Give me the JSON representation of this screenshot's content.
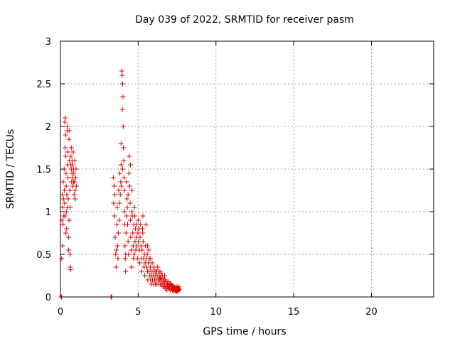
{
  "chart_data": {
    "type": "scatter",
    "title": "Day 039 of 2022, SRMTID for receiver pasm",
    "xlabel": "GPS time / hours",
    "ylabel": "SRMTID / TECUs",
    "xlim": [
      0,
      24
    ],
    "ylim": [
      0,
      3
    ],
    "xticks": [
      0,
      5,
      10,
      15,
      20
    ],
    "xtick_labels": [
      "0",
      "5",
      "10",
      "15",
      "20"
    ],
    "yticks": [
      0,
      0.5,
      1,
      1.5,
      2,
      2.5,
      3
    ],
    "ytick_labels": [
      "0",
      "0.5",
      "1",
      "1.5",
      "2",
      "2.5",
      "3"
    ],
    "grid": true,
    "marker": "plus",
    "color": "#e00000",
    "series": [
      {
        "values": [
          [
            0.05,
            0.0
          ],
          [
            0.08,
            0.0
          ],
          [
            0.08,
            0.45
          ],
          [
            0.1,
            0.9
          ],
          [
            0.12,
            1.2
          ],
          [
            0.14,
            0.6
          ],
          [
            0.15,
            1.05
          ],
          [
            0.17,
            0.85
          ],
          [
            0.18,
            1.35
          ],
          [
            0.2,
            1.15
          ],
          [
            0.22,
            0.95
          ],
          [
            0.24,
            1.5
          ],
          [
            0.25,
            1.25
          ],
          [
            0.27,
            1.1
          ],
          [
            0.28,
            2.05
          ],
          [
            0.3,
            1.75
          ],
          [
            0.31,
            2.1
          ],
          [
            0.33,
            1.9
          ],
          [
            0.34,
            1.65
          ],
          [
            0.36,
            1.45
          ],
          [
            0.37,
            1.3
          ],
          [
            0.38,
            1.0
          ],
          [
            0.4,
            0.8
          ],
          [
            0.41,
            1.2
          ],
          [
            0.43,
            1.95
          ],
          [
            0.44,
            2.0
          ],
          [
            0.46,
            1.7
          ],
          [
            0.47,
            1.55
          ],
          [
            0.48,
            1.4
          ],
          [
            0.5,
            1.15
          ],
          [
            0.52,
            0.7
          ],
          [
            0.53,
            0.55
          ],
          [
            0.55,
            1.85
          ],
          [
            0.56,
            1.95
          ],
          [
            0.58,
            1.6
          ],
          [
            0.6,
            1.25
          ],
          [
            0.62,
            0.5
          ],
          [
            0.64,
            0.35
          ],
          [
            0.65,
            0.32
          ],
          [
            0.67,
            1.55
          ],
          [
            0.68,
            1.65
          ],
          [
            0.7,
            1.5
          ],
          [
            0.72,
            1.35
          ],
          [
            0.74,
            1.45
          ],
          [
            0.75,
            1.6
          ],
          [
            0.77,
            1.55
          ],
          [
            0.78,
            1.4
          ],
          [
            0.8,
            1.3
          ],
          [
            0.82,
            1.7
          ],
          [
            0.84,
            1.5
          ],
          [
            0.86,
            1.45
          ],
          [
            0.88,
            1.2
          ],
          [
            0.9,
            1.35
          ],
          [
            0.92,
            1.6
          ],
          [
            0.95,
            1.25
          ],
          [
            0.98,
            1.4
          ],
          [
            1.0,
            1.5
          ],
          [
            1.02,
            1.3
          ],
          [
            0.3,
            0.95
          ],
          [
            0.35,
            0.75
          ],
          [
            0.45,
            1.05
          ],
          [
            0.55,
            0.9
          ],
          [
            0.62,
            1.05
          ],
          [
            0.7,
            1.75
          ],
          [
            0.85,
            1.35
          ],
          [
            0.95,
            1.15
          ]
        ]
      },
      {
        "values": [
          [
            3.25,
            0.0
          ],
          [
            3.3,
            0.0
          ],
          [
            3.4,
            1.4
          ],
          [
            3.42,
            1.1
          ],
          [
            3.45,
            1.3
          ],
          [
            3.48,
            0.95
          ],
          [
            3.5,
            1.2
          ],
          [
            3.52,
            0.7
          ],
          [
            3.55,
            0.5
          ],
          [
            3.58,
            0.35
          ],
          [
            3.6,
            0.55
          ],
          [
            3.63,
            0.85
          ],
          [
            3.65,
            1.05
          ],
          [
            3.68,
            0.6
          ],
          [
            3.7,
            0.45
          ],
          [
            3.72,
            0.75
          ],
          [
            3.75,
            1.25
          ],
          [
            3.78,
            0.9
          ],
          [
            3.8,
            1.1
          ],
          [
            3.82,
            1.45
          ],
          [
            3.85,
            1.2
          ],
          [
            3.88,
            1.35
          ],
          [
            3.9,
            1.55
          ],
          [
            3.92,
            1.3
          ],
          [
            3.95,
            2.65
          ],
          [
            3.97,
            2.6
          ],
          [
            3.98,
            2.2
          ],
          [
            4.0,
            2.5
          ],
          [
            4.02,
            2.35
          ],
          [
            4.04,
            2.0
          ],
          [
            4.05,
            1.75
          ],
          [
            4.07,
            1.6
          ],
          [
            4.09,
            1.4
          ],
          [
            4.1,
            1.25
          ],
          [
            4.12,
            1.0
          ],
          [
            4.14,
            0.85
          ],
          [
            4.15,
            0.6
          ],
          [
            4.17,
            0.45
          ],
          [
            4.19,
            0.3
          ],
          [
            4.2,
            0.5
          ],
          [
            4.22,
            0.75
          ],
          [
            4.25,
            0.95
          ],
          [
            4.28,
            1.15
          ],
          [
            4.3,
            1.05
          ],
          [
            4.32,
            0.85
          ],
          [
            4.35,
            0.65
          ],
          [
            4.38,
            0.5
          ],
          [
            4.4,
            1.45
          ],
          [
            4.42,
            1.65
          ],
          [
            4.45,
            1.3
          ],
          [
            4.48,
            1.1
          ],
          [
            4.5,
            0.9
          ],
          [
            4.52,
            0.7
          ],
          [
            4.55,
            0.55
          ],
          [
            4.58,
            0.35
          ],
          [
            4.6,
            1.25
          ],
          [
            4.62,
            0.95
          ],
          [
            4.65,
            0.75
          ],
          [
            4.68,
            0.6
          ],
          [
            4.7,
            0.45
          ],
          [
            4.72,
            0.85
          ],
          [
            4.75,
            1.05
          ],
          [
            4.78,
            0.95
          ],
          [
            4.8,
            0.65
          ],
          [
            4.82,
            0.8
          ],
          [
            4.85,
            0.55
          ],
          [
            4.88,
            0.7
          ],
          [
            4.9,
            0.85
          ],
          [
            4.92,
            0.6
          ],
          [
            4.95,
            0.45
          ],
          [
            4.98,
            0.75
          ],
          [
            5.0,
            0.9
          ],
          [
            5.02,
            0.65
          ],
          [
            5.05,
            0.8
          ],
          [
            5.08,
            0.55
          ],
          [
            5.1,
            0.4
          ],
          [
            5.12,
            0.7
          ],
          [
            5.15,
            0.85
          ],
          [
            5.18,
            0.6
          ],
          [
            5.2,
            0.45
          ],
          [
            5.22,
            0.3
          ],
          [
            5.25,
            0.55
          ],
          [
            5.28,
            0.8
          ],
          [
            5.3,
            0.95
          ],
          [
            5.32,
            0.65
          ],
          [
            5.35,
            0.45
          ],
          [
            5.38,
            0.35
          ],
          [
            5.4,
            0.5
          ],
          [
            5.42,
            0.25
          ],
          [
            5.45,
            0.4
          ],
          [
            5.48,
            0.6
          ],
          [
            5.5,
            0.85
          ],
          [
            5.52,
            0.45
          ],
          [
            5.55,
            0.35
          ],
          [
            5.58,
            0.5
          ],
          [
            5.6,
            0.3
          ],
          [
            5.62,
            0.2
          ],
          [
            5.65,
            0.4
          ],
          [
            5.68,
            0.55
          ],
          [
            5.7,
            0.3
          ],
          [
            5.72,
            0.45
          ],
          [
            5.75,
            0.25
          ],
          [
            5.78,
            0.35
          ],
          [
            5.8,
            0.2
          ],
          [
            5.82,
            0.3
          ],
          [
            5.85,
            0.15
          ],
          [
            5.88,
            0.25
          ],
          [
            5.9,
            0.4
          ],
          [
            5.92,
            0.2
          ],
          [
            5.95,
            0.3
          ],
          [
            5.98,
            0.15
          ],
          [
            6.0,
            0.25
          ],
          [
            6.02,
            0.35
          ],
          [
            6.05,
            0.2
          ],
          [
            6.08,
            0.3
          ],
          [
            6.1,
            0.15
          ],
          [
            6.12,
            0.25
          ],
          [
            6.15,
            0.2
          ],
          [
            6.18,
            0.3
          ],
          [
            6.2,
            0.15
          ],
          [
            6.22,
            0.25
          ],
          [
            6.25,
            0.35
          ],
          [
            6.28,
            0.2
          ],
          [
            6.3,
            0.3
          ],
          [
            6.32,
            0.15
          ],
          [
            6.35,
            0.25
          ],
          [
            6.38,
            0.2
          ],
          [
            6.4,
            0.3
          ],
          [
            6.42,
            0.15
          ],
          [
            6.45,
            0.22
          ],
          [
            6.48,
            0.28
          ],
          [
            6.5,
            0.15
          ],
          [
            6.52,
            0.2
          ],
          [
            6.55,
            0.25
          ],
          [
            6.58,
            0.15
          ],
          [
            6.6,
            0.12
          ],
          [
            6.62,
            0.18
          ],
          [
            6.65,
            0.22
          ],
          [
            6.68,
            0.12
          ],
          [
            6.7,
            0.15
          ],
          [
            6.72,
            0.2
          ],
          [
            6.75,
            0.1
          ],
          [
            6.78,
            0.15
          ],
          [
            6.8,
            0.18
          ],
          [
            6.82,
            0.12
          ],
          [
            6.85,
            0.08
          ],
          [
            6.88,
            0.15
          ],
          [
            6.9,
            0.12
          ],
          [
            6.92,
            0.18
          ],
          [
            6.95,
            0.1
          ],
          [
            6.98,
            0.14
          ],
          [
            7.0,
            0.12
          ],
          [
            7.02,
            0.1
          ],
          [
            7.05,
            0.16
          ],
          [
            7.08,
            0.08
          ],
          [
            7.1,
            0.12
          ],
          [
            7.12,
            0.15
          ],
          [
            7.15,
            0.1
          ],
          [
            7.18,
            0.13
          ],
          [
            7.2,
            0.08
          ],
          [
            7.22,
            0.12
          ],
          [
            7.25,
            0.1
          ],
          [
            7.28,
            0.07
          ],
          [
            7.3,
            0.12
          ],
          [
            7.32,
            0.09
          ],
          [
            7.35,
            0.11
          ],
          [
            7.38,
            0.07
          ],
          [
            7.4,
            0.1
          ],
          [
            7.42,
            0.08
          ],
          [
            7.45,
            0.12
          ],
          [
            7.48,
            0.06
          ],
          [
            7.5,
            0.09
          ],
          [
            7.52,
            0.11
          ],
          [
            7.55,
            0.07
          ],
          [
            7.58,
            0.1
          ],
          [
            7.6,
            0.08
          ],
          [
            7.62,
            0.12
          ],
          [
            7.65,
            0.09
          ],
          [
            3.9,
            1.8
          ],
          [
            4.0,
            1.5
          ],
          [
            4.25,
            1.35
          ],
          [
            4.35,
            1.2
          ],
          [
            4.5,
            1.55
          ],
          [
            4.6,
            1.0
          ],
          [
            4.75,
            0.5
          ],
          [
            5.3,
            0.75
          ],
          [
            5.6,
            0.6
          ],
          [
            5.8,
            0.45
          ],
          [
            6.15,
            0.3
          ],
          [
            6.4,
            0.22
          ],
          [
            6.7,
            0.25
          ]
        ]
      }
    ]
  }
}
